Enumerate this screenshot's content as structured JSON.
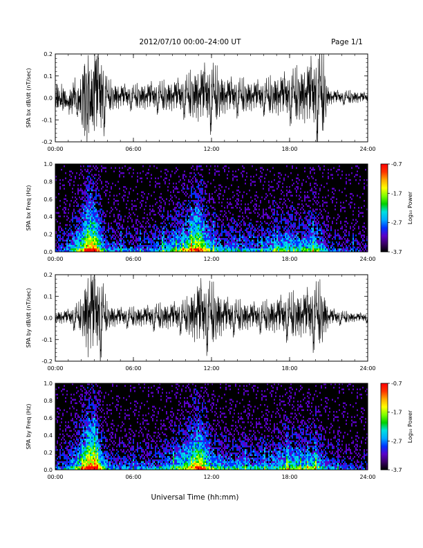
{
  "header": {
    "title": "2012/07/10   00:00–24:00 UT",
    "page": "Page 1/1"
  },
  "colors": {
    "trace": "#000000",
    "spectrogram_background": "#000000",
    "colormap": [
      "#000000",
      "#3a0066",
      "#5a00c8",
      "#0033ff",
      "#00aaff",
      "#00e0e0",
      "#00d000",
      "#7fff00",
      "#ffff00",
      "#ffaa00",
      "#ff3300",
      "#ff0000"
    ]
  },
  "chart_data": [
    {
      "type": "line",
      "ylabel": "SPA bx dB/dt (nT/sec)",
      "xlabel": "",
      "xlim": [
        "00:00",
        "24:00"
      ],
      "ylim": [
        -0.2,
        0.2
      ],
      "yticks": [
        "-0.2",
        "-0.1",
        "0.0",
        "0.1",
        "0.2"
      ],
      "xticks": [
        "00:00",
        "06:00",
        "12:00",
        "18:00",
        "24:00"
      ],
      "envelope_hours": [
        0,
        1,
        2,
        2.5,
        3,
        3.5,
        4,
        5,
        6,
        7,
        8,
        9,
        10,
        11,
        12,
        13,
        14,
        15,
        16,
        17,
        18,
        19,
        20,
        20.5,
        21,
        22,
        23,
        24
      ],
      "envelope_amplitude": [
        0.07,
        0.08,
        0.15,
        0.3,
        0.3,
        0.3,
        0.1,
        0.08,
        0.07,
        0.09,
        0.09,
        0.1,
        0.12,
        0.18,
        0.2,
        0.12,
        0.11,
        0.1,
        0.1,
        0.13,
        0.15,
        0.18,
        0.25,
        0.3,
        0.05,
        0.04,
        0.04,
        0.03
      ]
    },
    {
      "type": "heatmap",
      "ylabel": "SPA bx Freq (Hz)",
      "xlabel": "",
      "xlim": [
        "00:00",
        "24:00"
      ],
      "ylim": [
        0,
        1.0
      ],
      "yticks": [
        "0.0",
        "0.2",
        "0.4",
        "0.6",
        "0.8",
        "1.0"
      ],
      "xticks": [
        "00:00",
        "06:00",
        "12:00",
        "18:00",
        "24:00"
      ],
      "colorbar": {
        "label": "Log₁₀ Power",
        "range": [
          -3.7,
          -0.7
        ],
        "ticks": [
          "-0.7",
          "-1.7",
          "-2.7",
          "-3.7"
        ]
      },
      "activity_hours": [
        0,
        1,
        2,
        2.5,
        3,
        3.5,
        4,
        5,
        6,
        7,
        8,
        9,
        10,
        11,
        12,
        13,
        14,
        15,
        16,
        17,
        18,
        19,
        20,
        21,
        22,
        23,
        24
      ],
      "activity_level": [
        0.2,
        0.35,
        0.6,
        0.95,
        0.9,
        0.55,
        0.3,
        0.3,
        0.25,
        0.3,
        0.35,
        0.45,
        0.6,
        0.9,
        0.45,
        0.35,
        0.4,
        0.35,
        0.35,
        0.45,
        0.5,
        0.45,
        0.55,
        0.25,
        0.2,
        0.2,
        0.15
      ]
    },
    {
      "type": "line",
      "ylabel": "SPA by dB/dt (nT/sec)",
      "xlabel": "",
      "xlim": [
        "00:00",
        "24:00"
      ],
      "ylim": [
        -0.2,
        0.2
      ],
      "yticks": [
        "-0.2",
        "-0.1",
        "0.0",
        "0.1",
        "0.2"
      ],
      "xticks": [
        "00:00",
        "06:00",
        "12:00",
        "18:00",
        "24:00"
      ],
      "envelope_hours": [
        0,
        1,
        2,
        2.5,
        3,
        3.5,
        4,
        5,
        6,
        7,
        8,
        9,
        10,
        11,
        12,
        13,
        14,
        15,
        16,
        17,
        18,
        19,
        20,
        20.5,
        21,
        22,
        23,
        24
      ],
      "envelope_amplitude": [
        0.04,
        0.05,
        0.1,
        0.3,
        0.3,
        0.25,
        0.08,
        0.06,
        0.06,
        0.07,
        0.08,
        0.09,
        0.1,
        0.22,
        0.2,
        0.12,
        0.1,
        0.09,
        0.09,
        0.12,
        0.14,
        0.15,
        0.2,
        0.2,
        0.06,
        0.04,
        0.03,
        0.03
      ]
    },
    {
      "type": "heatmap",
      "ylabel": "SPA by Freq (Hz)",
      "xlabel": "Universal Time (hh:mm)",
      "xlim": [
        "00:00",
        "24:00"
      ],
      "ylim": [
        0,
        1.0
      ],
      "yticks": [
        "0.0",
        "0.2",
        "0.4",
        "0.6",
        "0.8",
        "1.0"
      ],
      "xticks": [
        "00:00",
        "06:00",
        "12:00",
        "18:00",
        "24:00"
      ],
      "colorbar": {
        "label": "Log₁₀ Power",
        "range": [
          -3.7,
          -0.7
        ],
        "ticks": [
          "-0.7",
          "-1.7",
          "-2.7",
          "-3.7"
        ]
      },
      "activity_hours": [
        0,
        1,
        2,
        2.5,
        3,
        3.5,
        4,
        5,
        6,
        7,
        8,
        9,
        10,
        11,
        12,
        13,
        14,
        15,
        16,
        17,
        18,
        19,
        20,
        21,
        22,
        23,
        24
      ],
      "activity_level": [
        0.25,
        0.35,
        0.65,
        0.95,
        0.95,
        0.6,
        0.35,
        0.3,
        0.3,
        0.3,
        0.35,
        0.45,
        0.6,
        0.9,
        0.5,
        0.4,
        0.4,
        0.4,
        0.4,
        0.45,
        0.55,
        0.5,
        0.55,
        0.3,
        0.25,
        0.2,
        0.2
      ]
    }
  ]
}
